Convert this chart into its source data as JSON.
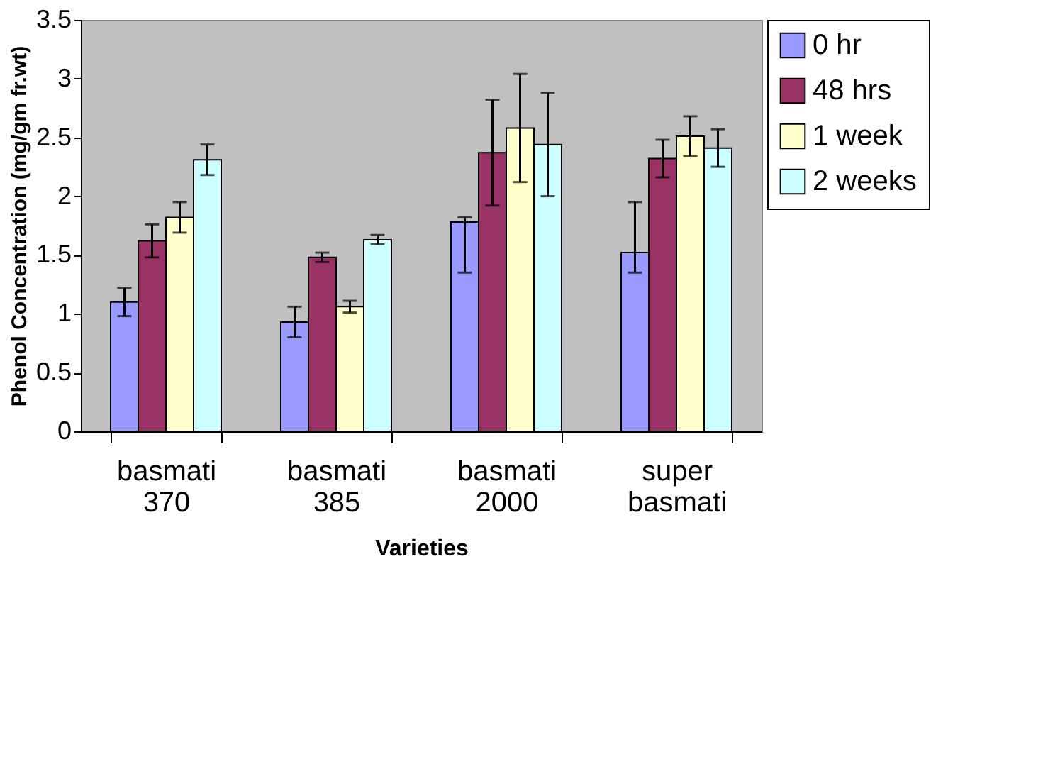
{
  "chart_data": {
    "type": "bar",
    "xlabel": "Varieties",
    "ylabel": "Phenol Concentration (mg/gm fr.wt)",
    "categories": [
      "basmati 370",
      "basmati 385",
      "basmati 2000",
      "super basmati"
    ],
    "series": [
      {
        "name": "0 hr",
        "color": "#9999ff",
        "values": [
          1.1,
          0.93,
          1.78,
          1.52
        ],
        "errors": [
          0.12,
          0.13,
          [
            1.35,
            1.82
          ],
          [
            1.35,
            1.95
          ]
        ]
      },
      {
        "name": "48 hrs",
        "color": "#993366",
        "values": [
          1.62,
          1.48,
          2.37,
          2.32
        ],
        "errors": [
          0.14,
          0.04,
          0.45,
          0.16
        ]
      },
      {
        "name": "1 week",
        "color": "#ffffcc",
        "values": [
          1.82,
          1.06,
          2.58,
          2.51
        ],
        "errors": [
          0.13,
          0.05,
          0.46,
          0.17
        ]
      },
      {
        "name": "2 weeks",
        "color": "#ccffff",
        "values": [
          2.31,
          1.63,
          2.44,
          2.41
        ],
        "errors": [
          0.13,
          0.04,
          0.44,
          0.16
        ]
      }
    ],
    "ylim": [
      0,
      3.5
    ],
    "yticks": [
      0,
      0.5,
      1,
      1.5,
      2,
      2.5,
      3,
      3.5
    ],
    "grid": false,
    "legend": "right"
  }
}
